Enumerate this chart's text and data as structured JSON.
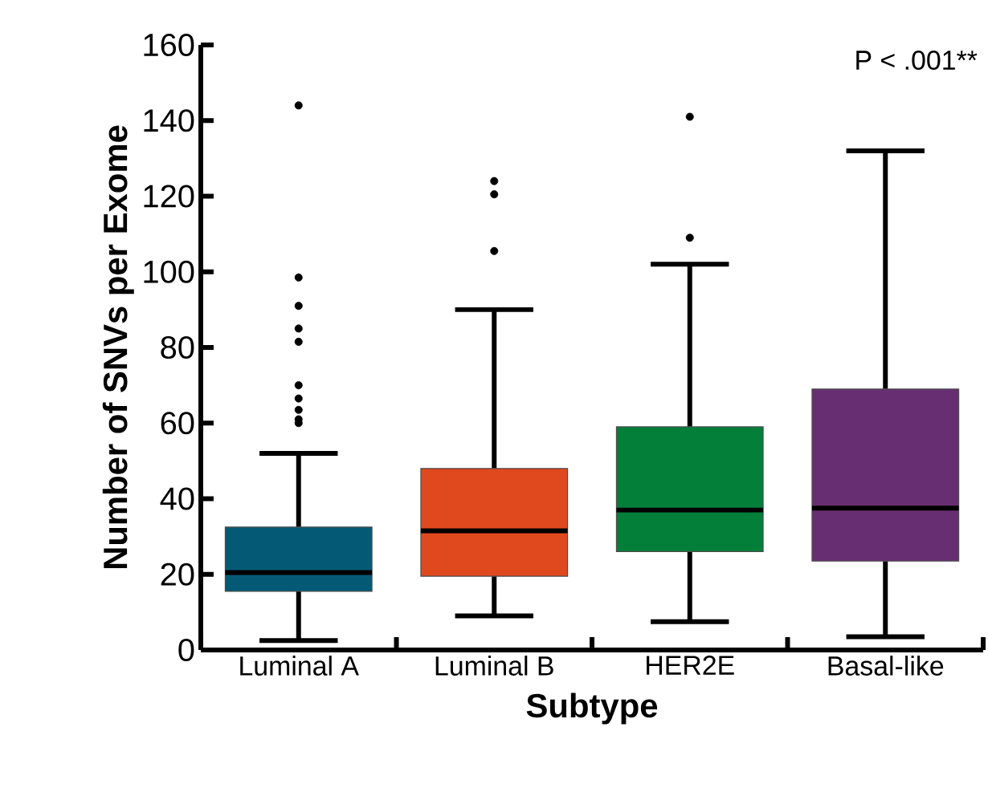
{
  "chart_data": {
    "type": "box",
    "xlabel": "Subtype",
    "ylabel": "Number of SNVs per Exome",
    "categories": [
      "Luminal A",
      "Luminal B",
      "HER2E",
      "Basal-like"
    ],
    "colors": [
      "#045a74",
      "#e0491e",
      "#047f3a",
      "#672f72"
    ],
    "boxes": [
      {
        "low": 2.5,
        "q1": 15.5,
        "median": 20.5,
        "q3": 32.5,
        "high": 52,
        "outliers": [
          144,
          98.5,
          91,
          85,
          81.5,
          70,
          66.5,
          63.5,
          61,
          60
        ]
      },
      {
        "low": 9,
        "q1": 19.5,
        "median": 31.5,
        "q3": 48,
        "high": 90,
        "outliers": [
          124,
          120.5,
          105.5
        ]
      },
      {
        "low": 7.5,
        "q1": 26,
        "median": 37,
        "q3": 59,
        "high": 102,
        "outliers": [
          141,
          109
        ]
      },
      {
        "low": 3.5,
        "q1": 23.5,
        "median": 37.5,
        "q3": 69,
        "high": 132
      }
    ],
    "ylim": [
      0,
      160
    ],
    "yticks": [
      0,
      20,
      40,
      60,
      80,
      100,
      120,
      140,
      160
    ],
    "annotations": [
      "P < .001**"
    ]
  }
}
